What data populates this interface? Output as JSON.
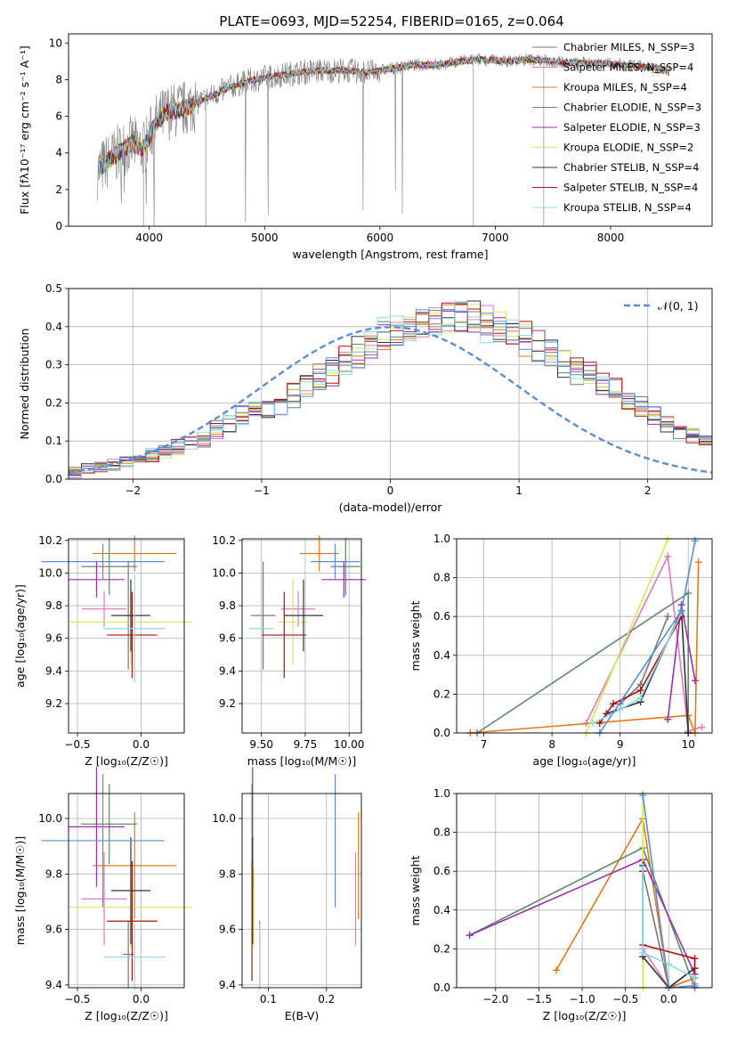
{
  "figure_title": "PLATE=0693, MJD=52254, FIBERID=0165, z=0.064",
  "colors": {
    "chabrier_miles": "#777777",
    "salpeter_miles": "#e377c2",
    "kroupa_miles": "#e07b1a",
    "chabrier_elodie": "#5f8a68",
    "salpeter_elodie": "#9b2fae",
    "kroupa_elodie": "#d4ea55",
    "chabrier_stelib": "#333333",
    "salpeter_stelib": "#b01010",
    "kroupa_stelib": "#8fd8e6",
    "blue": "#5b8dd6",
    "spectrum_teal": "#7dd8d4"
  },
  "chart_data": [
    {
      "id": "spectrum",
      "type": "line",
      "title": "PLATE=0693, MJD=52254, FIBERID=0165, z=0.064",
      "xlabel": "wavelength [Angstrom, rest frame]",
      "ylabel": "Flux [fλ10⁻¹⁷ erg cm⁻² s⁻¹ A⁻¹]",
      "xlim": [
        3300,
        8880
      ],
      "ylim": [
        0,
        10.5
      ],
      "xticks": [
        "4000",
        "5000",
        "6000",
        "7000",
        "8000"
      ],
      "yticks": [
        "0",
        "2",
        "4",
        "6",
        "8",
        "10"
      ],
      "grid": false,
      "legend_position": "right",
      "legend": [
        "Chabrier MILES, N_SSP=3",
        "Salpeter MILES, N_SSP=4",
        "Kroupa MILES, N_SSP=4",
        "Chabrier ELODIE, N_SSP=3",
        "Salpeter ELODIE, N_SSP=3",
        "Kroupa ELODIE, N_SSP=2",
        "Chabrier STELIB, N_SSP=4",
        "Salpeter STELIB, N_SSP=4",
        "Kroupa STELIB, N_SSP=4"
      ],
      "data_envelope": {
        "x": [
          3550,
          3650,
          3750,
          3850,
          3950,
          4050,
          4150,
          4300,
          4500,
          4700,
          4900,
          5100,
          5300,
          5500,
          5700,
          5900,
          6100,
          6300,
          6500,
          6700,
          6900,
          7100,
          7300,
          7500,
          7700,
          7900,
          8100,
          8300,
          8500
        ],
        "y": [
          3.0,
          3.6,
          4.1,
          4.5,
          4.2,
          5.6,
          6.2,
          6.4,
          7.0,
          7.6,
          8.0,
          8.2,
          8.4,
          8.5,
          8.5,
          8.4,
          8.6,
          8.8,
          8.8,
          9.0,
          9.1,
          9.0,
          9.1,
          9.0,
          8.9,
          8.9,
          8.8,
          8.7,
          8.5
        ]
      }
    },
    {
      "id": "residuals",
      "type": "bar",
      "xlabel": "(data-model)/error",
      "ylabel": "Normed distribution",
      "xlim": [
        -2.5,
        2.5
      ],
      "ylim": [
        0,
        0.5
      ],
      "xticks": [
        "−2",
        "−1",
        "0",
        "1",
        "2"
      ],
      "yticks": [
        "0.0",
        "0.1",
        "0.2",
        "0.3",
        "0.4",
        "0.5"
      ],
      "grid": true,
      "legend_position": "top-right",
      "legend": [
        "𝒩(0, 1)"
      ],
      "histogram_bin_width": 0.1,
      "histogram_mean_shape": [
        0.02,
        0.028,
        0.032,
        0.036,
        0.045,
        0.055,
        0.063,
        0.072,
        0.085,
        0.1,
        0.11,
        0.13,
        0.15,
        0.165,
        0.18,
        0.19,
        0.2,
        0.22,
        0.25,
        0.27,
        0.29,
        0.31,
        0.33,
        0.35,
        0.37,
        0.38,
        0.4,
        0.41,
        0.42,
        0.425,
        0.43,
        0.425,
        0.415,
        0.4,
        0.39,
        0.37,
        0.35,
        0.33,
        0.31,
        0.29,
        0.27,
        0.25,
        0.23,
        0.21,
        0.19,
        0.17,
        0.15,
        0.13,
        0.115,
        0.1
      ]
    },
    {
      "id": "age_vs_Z",
      "type": "scatter",
      "xlabel": "Z [log₁₀(Z/Z☉)]",
      "ylabel": "age  [log₁₀(age/yr)]",
      "xlim": [
        -0.57,
        0.34
      ],
      "ylim": [
        9.02,
        10.21
      ],
      "xticks": [
        "−0.5",
        "0.0"
      ],
      "yticks": [
        "9.2",
        "9.4",
        "9.6",
        "9.8",
        "10.0",
        "10.2"
      ],
      "grid": true
    },
    {
      "id": "age_vs_mass",
      "type": "scatter",
      "xlabel": "mass [log₁₀(M/M☉)]",
      "ylabel": "",
      "xlim": [
        9.39,
        10.07
      ],
      "ylim": [
        9.02,
        10.21
      ],
      "xticks": [
        "9.50",
        "9.75",
        "10.00"
      ],
      "yticks": [
        "9.2",
        "9.4",
        "9.6",
        "9.8",
        "10.0",
        "10.2"
      ],
      "grid": true
    },
    {
      "id": "massweight_vs_age",
      "type": "line",
      "xlabel": "age  [log₁₀(age/yr)]",
      "ylabel": "mass weight",
      "xlim": [
        6.6,
        10.35
      ],
      "ylim": [
        0,
        1.0
      ],
      "xticks": [
        "7",
        "8",
        "9",
        "10"
      ],
      "yticks": [
        "0.0",
        "0.2",
        "0.4",
        "0.6",
        "0.8",
        "1.0"
      ],
      "grid": true
    },
    {
      "id": "mass_vs_Z",
      "type": "scatter",
      "xlabel": "Z [log₁₀(Z/Z☉)]",
      "ylabel": "mass [log₁₀(M/M☉)]",
      "xlim": [
        -0.57,
        0.34
      ],
      "ylim": [
        9.39,
        10.09
      ],
      "xticks": [
        "−0.5",
        "0.0"
      ],
      "yticks": [
        "9.4",
        "9.6",
        "9.8",
        "10.0"
      ],
      "grid": true
    },
    {
      "id": "mass_vs_ebv",
      "type": "scatter",
      "xlabel": "E(B-V)",
      "ylabel": "",
      "xlim": [
        0.055,
        0.26
      ],
      "ylim": [
        9.39,
        10.09
      ],
      "xticks": [
        "0.1",
        "0.2"
      ],
      "yticks": [
        "9.4",
        "9.6",
        "9.8",
        "10.0"
      ],
      "grid": true
    },
    {
      "id": "massweight_vs_Z",
      "type": "line",
      "xlabel": "Z [log₁₀(Z/Z☉)]",
      "ylabel": "mass weight",
      "xlim": [
        -2.45,
        0.5
      ],
      "ylim": [
        0,
        1.0
      ],
      "xticks": [
        "−2.0",
        "−1.5",
        "−1.0",
        "−0.5",
        "0.0"
      ],
      "yticks": [
        "0.0",
        "0.2",
        "0.4",
        "0.6",
        "0.8",
        "1.0"
      ],
      "grid": true
    }
  ],
  "fits": [
    {
      "key": "chabrier_miles",
      "Z": -0.1,
      "Zerr": 0.02,
      "age": 9.74,
      "ageerr": 0.15,
      "mass": 9.51,
      "masserr": 0.05,
      "ebv": 0.085,
      "ages": [
        9.0,
        9.3,
        9.7
      ],
      "weights": [
        0.15,
        0.25,
        0.6
      ],
      "Zs": [
        -0.3,
        0.0,
        0.3
      ],
      "Zw": [
        0.6,
        0.0,
        0.1
      ]
    },
    {
      "key": "salpeter_miles",
      "Z": -0.29,
      "Zerr": 0.08,
      "age": 9.78,
      "ageerr": 0.05,
      "mass": 9.71,
      "masserr": 0.07,
      "ebv": 0.25,
      "ages": [
        8.5,
        9.7,
        10.2,
        10.0
      ],
      "weights": [
        0.05,
        0.91,
        0.03,
        0.01
      ],
      "Zs": [
        -0.3,
        0.0,
        0.3,
        0.3
      ],
      "Zw": [
        0.2,
        0.0,
        0.05,
        0.02
      ]
    },
    {
      "key": "kroupa_miles",
      "Z": -0.05,
      "Zerr": 0.15,
      "age": 10.12,
      "ageerr": 0.05,
      "mass": 9.83,
      "masserr": 0.08,
      "ebv": 0.255,
      "ages": [
        6.8,
        10.0,
        10.15,
        10.1
      ],
      "weights": [
        0.0,
        0.09,
        0.88,
        0.0
      ],
      "Zs": [
        -1.3,
        -0.3,
        0.0,
        0.3
      ],
      "Zw": [
        0.09,
        0.87,
        0.0,
        0.05
      ]
    },
    {
      "key": "chabrier_elodie",
      "Z": -0.25,
      "Zerr": 0.1,
      "age": 10.04,
      "ageerr": 0.08,
      "mass": 9.98,
      "masserr": 0.06,
      "ebv": 0.072,
      "ages": [
        6.9,
        10.0,
        10.0
      ],
      "weights": [
        0.0,
        0.72,
        0.0
      ],
      "Zs": [
        -2.3,
        -0.3,
        0.3
      ],
      "Zw": [
        0.27,
        0.72,
        0.0
      ]
    },
    {
      "key": "salpeter_elodie",
      "Z": -0.35,
      "Zerr": 0.1,
      "age": 9.96,
      "ageerr": 0.05,
      "mass": 9.97,
      "masserr": 0.09,
      "ebv": 0.073,
      "ages": [
        9.7,
        9.9,
        10.1
      ],
      "weights": [
        0.07,
        0.66,
        0.27
      ],
      "Zs": [
        -2.3,
        -0.3,
        0.3
      ],
      "Zw": [
        0.27,
        0.66,
        0.07
      ]
    },
    {
      "key": "kroupa_elodie",
      "Z": -0.08,
      "Zerr": 0.22,
      "age": 9.7,
      "ageerr": 0.12,
      "mass": 9.68,
      "masserr": 0.06,
      "ebv": 0.075,
      "ages": [
        8.5,
        9.7
      ],
      "weights": [
        0.0,
        1.0
      ],
      "Zs": [
        -0.3,
        -0.3
      ],
      "Zw": [
        0.0,
        1.0
      ]
    },
    {
      "key": "chabrier_stelib",
      "Z": -0.08,
      "Zerr": 0.07,
      "age": 9.74,
      "ageerr": 0.1,
      "mass": 9.74,
      "masserr": 0.08,
      "ebv": 0.073,
      "ages": [
        8.8,
        9.3,
        9.9,
        10.0
      ],
      "weights": [
        0.1,
        0.16,
        0.63,
        0.0
      ],
      "Zs": [
        -0.3,
        -0.3,
        0.0,
        0.3
      ],
      "Zw": [
        0.63,
        0.16,
        0.0,
        0.1
      ]
    },
    {
      "key": "salpeter_stelib",
      "Z": -0.07,
      "Zerr": 0.09,
      "age": 9.62,
      "ageerr": 0.12,
      "mass": 9.63,
      "masserr": 0.09,
      "ebv": 0.072,
      "ages": [
        8.7,
        8.9,
        9.3,
        9.9
      ],
      "weights": [
        0.05,
        0.15,
        0.22,
        0.6
      ],
      "Zs": [
        -0.3,
        -0.3,
        0.3,
        0.3
      ],
      "Zw": [
        0.6,
        0.22,
        0.15,
        0.05
      ]
    },
    {
      "key": "kroupa_stelib",
      "Z": -0.05,
      "Zerr": 0.11,
      "age": 9.66,
      "ageerr": 0.15,
      "mass": 9.5,
      "masserr": 0.05,
      "ebv": 0.085,
      "ages": [
        8.6,
        9.0,
        9.3,
        9.9
      ],
      "weights": [
        0.05,
        0.12,
        0.18,
        0.62
      ],
      "Zs": [
        -0.3,
        -0.3,
        0.0,
        0.3
      ],
      "Zw": [
        0.62,
        0.18,
        0.12,
        0.05
      ]
    },
    {
      "key": "blue",
      "Z": -0.3,
      "Zerr": 0.22,
      "age": 10.07,
      "ageerr": 0.05,
      "mass": 9.92,
      "masserr": 0.1,
      "ebv": 0.215,
      "ages": [
        8.7,
        9.9,
        10.1
      ],
      "weights": [
        0.0,
        0.63,
        0.99
      ],
      "Zs": [
        -0.3,
        0.0,
        0.3
      ],
      "Zw": [
        0.99,
        0.0,
        0.01
      ]
    }
  ]
}
